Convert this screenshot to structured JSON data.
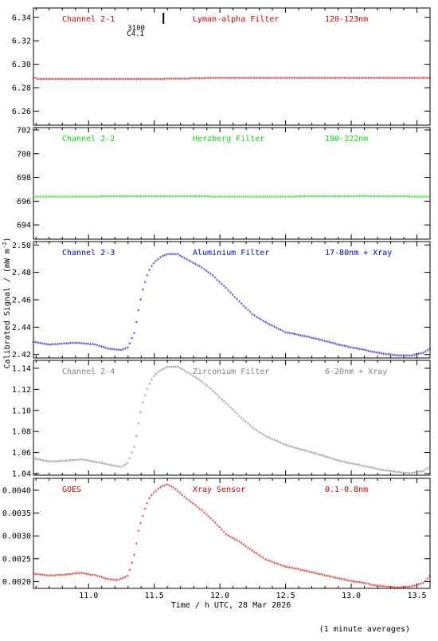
{
  "xlabel": "Time / h UTC, 28 Mar 2026",
  "ylabel": "Calibrated Signal / (mW m",
  "ylabel_sup": "-2",
  "ylabel_close": ")",
  "footnote": "(1 minute averages)",
  "flare_marker": {
    "x": 11.57,
    "label_top": "3100",
    "label_bottom": "C4.1"
  },
  "chart_data": [
    {
      "type": "scatter",
      "panel": "Channel 2-1",
      "channel": "Channel 2-1",
      "filter": "Lyman-alpha Filter",
      "band": "120-123nm",
      "color": "#cc0000",
      "xlim": [
        10.58,
        13.6
      ],
      "ylim": [
        6.248,
        6.348
      ],
      "yticks": [
        "6.34",
        "6.32",
        "6.30",
        "6.28",
        "6.26"
      ],
      "x": [
        10.6,
        11.0,
        11.5,
        12.0,
        12.5,
        13.0,
        13.6
      ],
      "y": [
        6.287,
        6.287,
        6.287,
        6.288,
        6.288,
        6.288,
        6.288
      ]
    },
    {
      "type": "scatter",
      "panel": "Channel 2-2",
      "channel": "Channel 2-2",
      "filter": "Herzberg Filter",
      "band": "190-222nm",
      "color": "#00dd00",
      "xlim": [
        10.58,
        13.6
      ],
      "ylim": [
        692.8,
        702.2
      ],
      "yticks": [
        "702",
        "700",
        "698",
        "696",
        "694"
      ],
      "x": [
        10.6,
        11.0,
        11.5,
        12.0,
        12.5,
        13.0,
        13.6
      ],
      "y": [
        696.35,
        696.35,
        696.4,
        696.35,
        696.35,
        696.4,
        696.35
      ]
    },
    {
      "type": "scatter",
      "panel": "Channel 2-3",
      "channel": "Channel 2-3",
      "filter": "Aluminium Filter",
      "band": "17-80nm + Xray",
      "color": "#0000cc",
      "xlim": [
        10.58,
        13.6
      ],
      "ylim": [
        2.4175,
        2.5025
      ],
      "yticks": [
        "2.50",
        "2.48",
        "2.46",
        "2.44",
        "2.42"
      ],
      "x": [
        10.58,
        10.7,
        10.85,
        10.95,
        11.05,
        11.15,
        11.25,
        11.3,
        11.35,
        11.38,
        11.41,
        11.44,
        11.47,
        11.5,
        11.55,
        11.6,
        11.68,
        11.75,
        11.85,
        11.95,
        12.05,
        12.15,
        12.25,
        12.35,
        12.5,
        12.6,
        12.75,
        12.9,
        13.05,
        13.2,
        13.35,
        13.45,
        13.55,
        13.6
      ],
      "y": [
        2.429,
        2.427,
        2.428,
        2.428,
        2.427,
        2.424,
        2.423,
        2.425,
        2.436,
        2.452,
        2.466,
        2.476,
        2.483,
        2.487,
        2.491,
        2.493,
        2.493,
        2.489,
        2.484,
        2.477,
        2.468,
        2.458,
        2.449,
        2.443,
        2.436,
        2.434,
        2.431,
        2.427,
        2.424,
        2.421,
        2.419,
        2.419,
        2.421,
        2.424
      ]
    },
    {
      "type": "scatter",
      "panel": "Channel 2-4",
      "channel": "Channel 2-4",
      "filter": "Zirconium Filter",
      "band": "6-20nm + Xray",
      "color": "#808080",
      "xlim": [
        10.58,
        13.6
      ],
      "ylim": [
        1.0385,
        1.1475
      ],
      "yticks": [
        "1.14",
        "1.12",
        "1.10",
        "1.08",
        "1.06",
        "1.04"
      ],
      "x": [
        10.58,
        10.7,
        10.85,
        10.95,
        11.05,
        11.15,
        11.25,
        11.3,
        11.35,
        11.38,
        11.41,
        11.44,
        11.47,
        11.5,
        11.55,
        11.6,
        11.68,
        11.75,
        11.85,
        11.95,
        12.05,
        12.15,
        12.25,
        12.35,
        12.5,
        12.6,
        12.75,
        12.9,
        13.05,
        13.2,
        13.35,
        13.45,
        13.55,
        13.6
      ],
      "y": [
        1.054,
        1.051,
        1.052,
        1.053,
        1.051,
        1.048,
        1.046,
        1.05,
        1.066,
        1.087,
        1.106,
        1.118,
        1.127,
        1.133,
        1.138,
        1.141,
        1.141,
        1.136,
        1.128,
        1.118,
        1.106,
        1.094,
        1.083,
        1.075,
        1.067,
        1.063,
        1.058,
        1.052,
        1.048,
        1.044,
        1.041,
        1.04,
        1.042,
        1.046
      ]
    },
    {
      "type": "scatter",
      "panel": "GOES",
      "channel": "GOES",
      "filter": "Xray Sensor",
      "band": "0.1-0.8nm",
      "color": "#cc0000",
      "xlim": [
        10.58,
        13.6
      ],
      "ylim": [
        0.00185,
        0.00426
      ],
      "yticks": [
        "0.0040",
        "0.0035",
        "0.0030",
        "0.0025",
        "0.0020"
      ],
      "x": [
        10.58,
        10.7,
        10.85,
        10.95,
        11.05,
        11.15,
        11.22,
        11.3,
        11.35,
        11.38,
        11.41,
        11.44,
        11.47,
        11.5,
        11.53,
        11.56,
        11.6,
        11.66,
        11.75,
        11.85,
        11.95,
        12.05,
        12.15,
        12.25,
        12.35,
        12.5,
        12.6,
        12.75,
        12.9,
        13.05,
        13.2,
        13.35,
        13.45,
        13.55,
        13.6
      ],
      "y": [
        0.00216,
        0.00212,
        0.00215,
        0.00218,
        0.00213,
        0.00204,
        0.00202,
        0.00212,
        0.0026,
        0.0031,
        0.0034,
        0.00367,
        0.00385,
        0.00395,
        0.00402,
        0.00408,
        0.00412,
        0.00402,
        0.0038,
        0.00358,
        0.00332,
        0.00302,
        0.00286,
        0.00266,
        0.00247,
        0.00232,
        0.00226,
        0.00216,
        0.00206,
        0.00198,
        0.0019,
        0.00186,
        0.00188,
        0.00196,
        0.00212
      ]
    }
  ]
}
